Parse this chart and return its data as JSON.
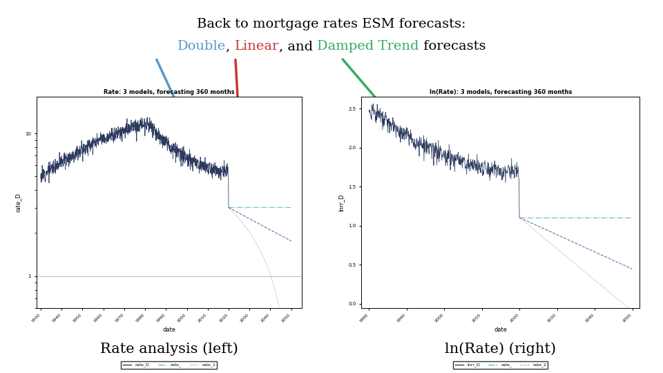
{
  "title_line1": "Back to mortgage rates ESM forecasts:",
  "title_line2_parts": [
    {
      "text": "Double",
      "color": "#5599CC"
    },
    {
      "text": ", ",
      "color": "#000000"
    },
    {
      "text": "Linear",
      "color": "#CC3333"
    },
    {
      "text": ", and ",
      "color": "#000000"
    },
    {
      "text": "Damped Trend",
      "color": "#33AA66"
    },
    {
      "text": " forecasts",
      "color": "#000000"
    }
  ],
  "left_plot_title": "Rate: 3 models, forecasting 360 months",
  "right_plot_title": "ln(Rate): 3 models, forecasting 360 months",
  "left_ylabel": "rate_D",
  "right_ylabel": "lnrr_D",
  "xlabel": "date",
  "left_caption": "Rate analysis (left)",
  "right_caption": "ln(Rate) (right)",
  "bg_color": "#FFFFFF",
  "arrow_double_color": "#5599CC",
  "arrow_linear_color": "#CC3333",
  "arrow_damped_color": "#33AA66",
  "hist_color": "#2B3A5E",
  "forecast_double_color": "#5BBCCC",
  "forecast_damped_color": "#5577AA",
  "forecast_linear_color": "#CC6655",
  "left_xticks": [
    1930,
    1940,
    1950,
    1960,
    1970,
    1980,
    1990,
    2000,
    2010,
    2020,
    2030,
    2040,
    2050
  ],
  "right_xticks": [
    1980,
    1990,
    2000,
    2010,
    2020,
    2030,
    2040,
    2050
  ],
  "right_yticks": [
    0.0,
    0.5,
    1.0,
    1.5,
    2.0,
    2.5
  ]
}
